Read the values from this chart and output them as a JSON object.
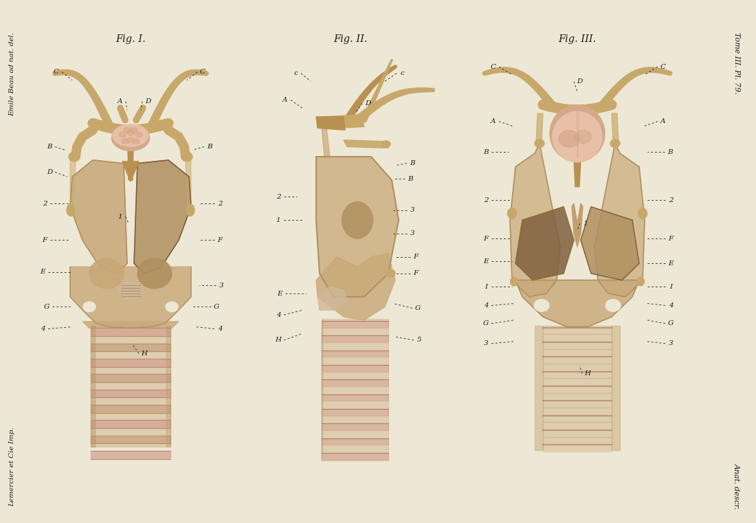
{
  "background_color": "#ede8d5",
  "figsize": [
    11.0,
    7.61
  ],
  "dpi": 100,
  "title_fig1": "Fig. I.",
  "title_fig2": "Fig. II.",
  "title_fig3": "Fig. III.",
  "right_top_text": "Tome III. Pl. 79.",
  "right_bottom_text": "Anat. descr.",
  "left_top_text": "Emile Beau ad nat. del.",
  "left_bottom_text": "Lemercier et Cie Imp.",
  "bone_light": "#c8a86a",
  "bone_mid": "#b89050",
  "bone_dark": "#907038",
  "muscle_light": "#c8a878",
  "muscle_mid": "#b09060",
  "muscle_dark": "#806040",
  "pink_light": "#e8c0a8",
  "pink_mid": "#d4a888",
  "pink_dark": "#c09070",
  "trachea_color": "#c8a878",
  "trachea_stripe": "#d4a090",
  "label_color": "#1a1a1a",
  "label_fontsize": 7.5,
  "title_fontsize": 10.5
}
